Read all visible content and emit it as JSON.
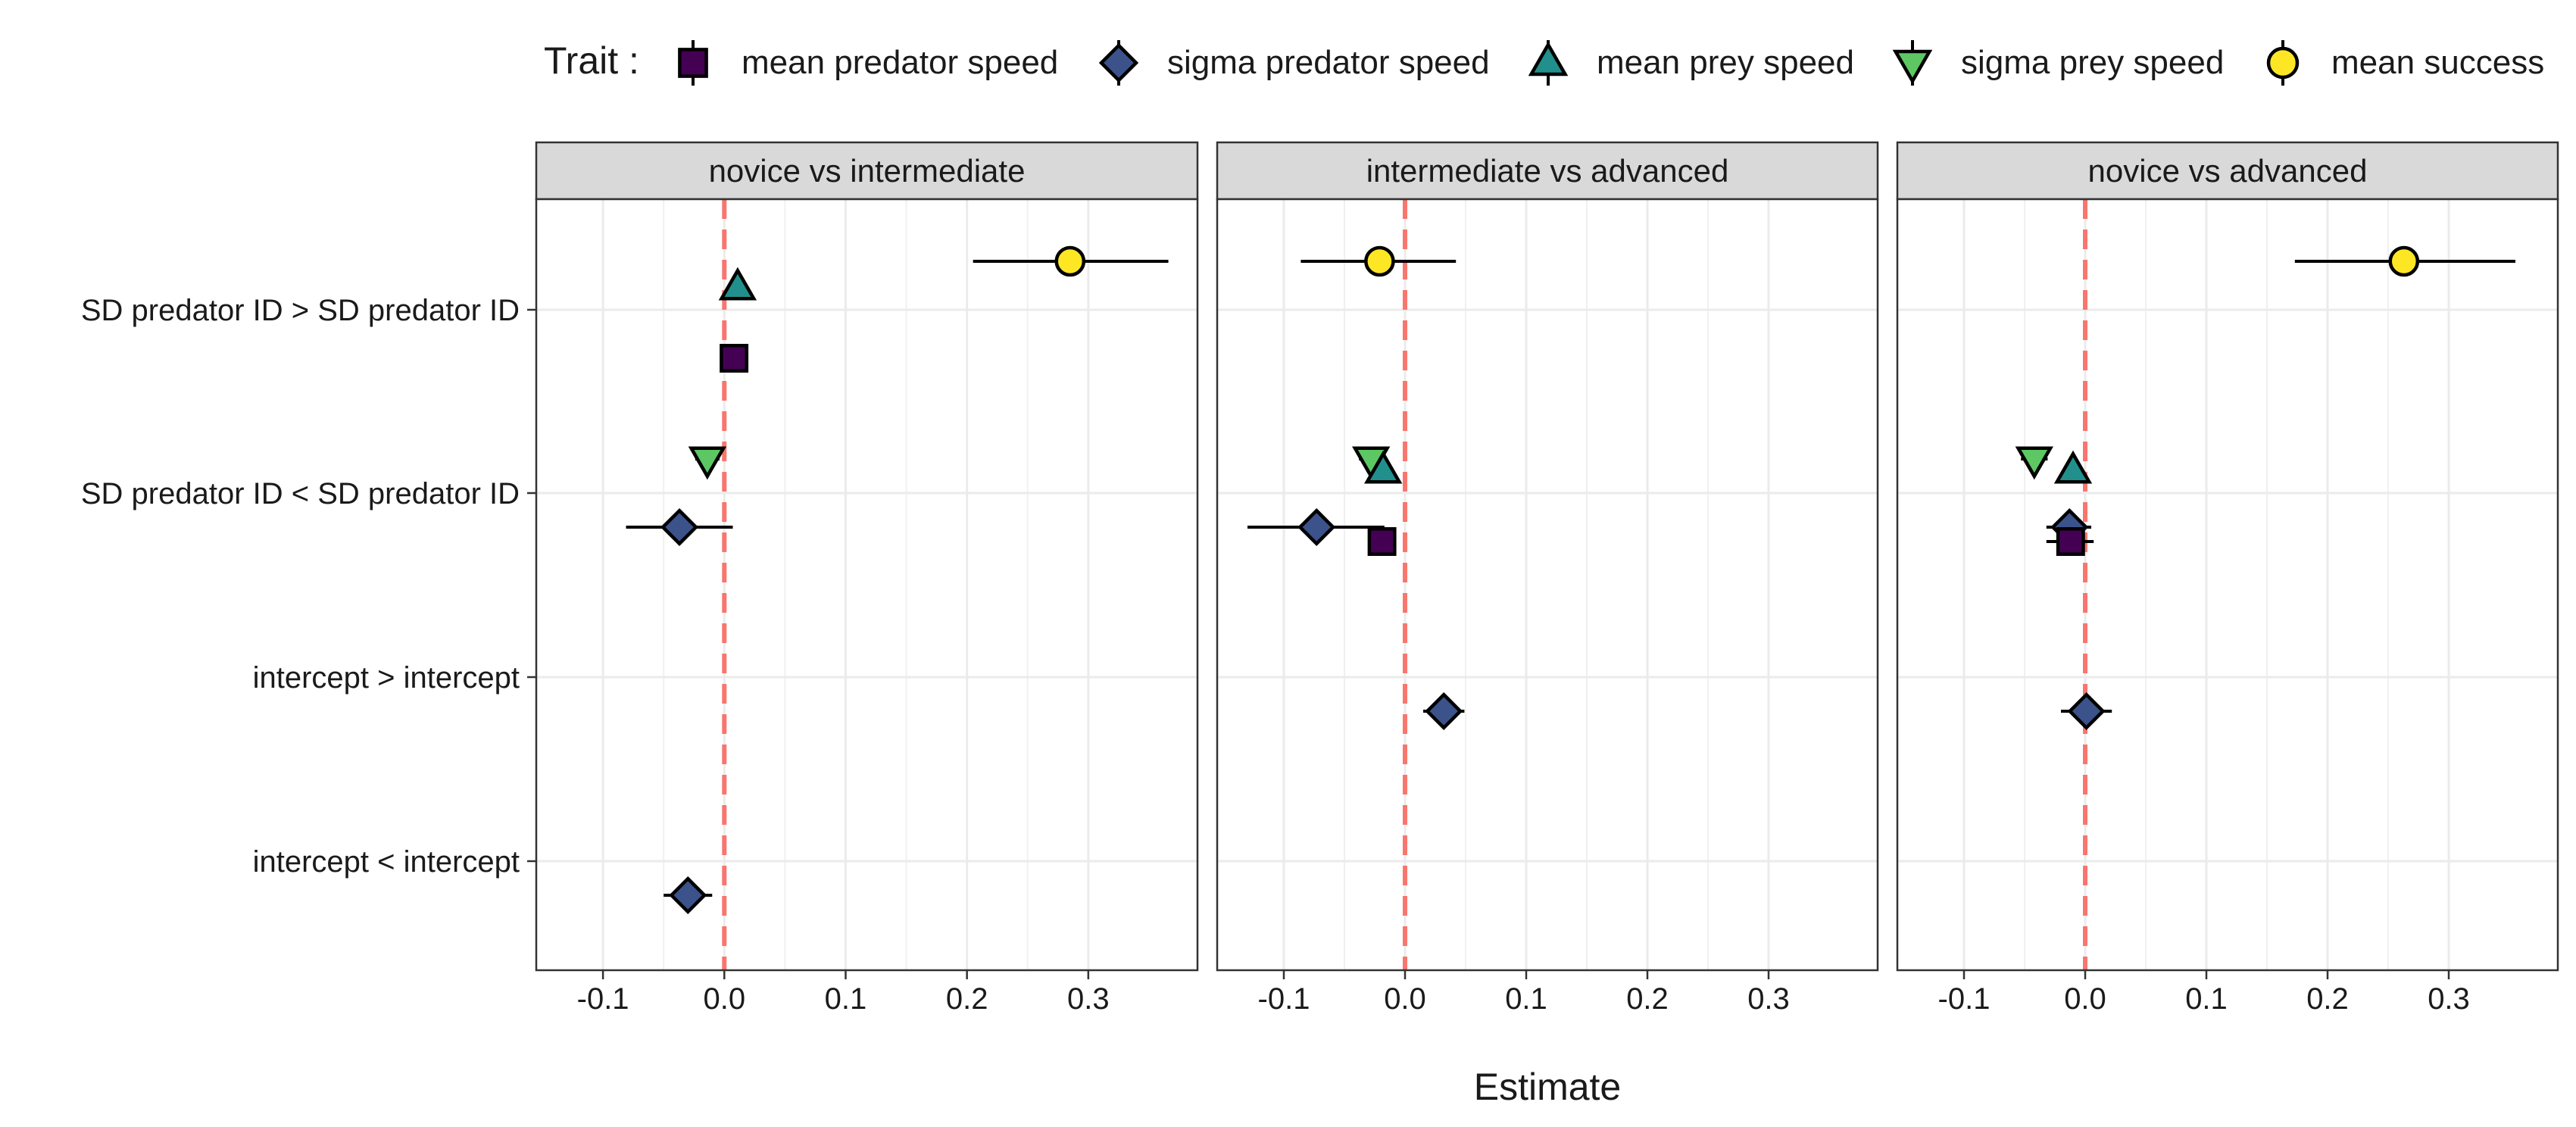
{
  "legend": {
    "title": "Trait :",
    "position": "top",
    "entries": [
      {
        "label": "mean predator speed",
        "shape": "square",
        "color": "#440154"
      },
      {
        "label": "sigma predator speed",
        "shape": "diamond",
        "color": "#3B528B"
      },
      {
        "label": "mean prey speed",
        "shape": "triangle-up",
        "color": "#21908C"
      },
      {
        "label": "sigma prey speed",
        "shape": "triangle-down",
        "color": "#5DC863"
      },
      {
        "label": "mean success",
        "shape": "circle",
        "color": "#FDE725"
      }
    ]
  },
  "x_axis_title": "Estimate",
  "reference_line_color": "#F8766D",
  "chart_data": {
    "type": "scatter",
    "subtype": "forest plot (point estimates with error bars)",
    "xlabel": "Estimate",
    "ylabel": "",
    "xlim": [
      -0.155,
      0.39
    ],
    "x_ticks": [
      -0.1,
      0.0,
      0.1,
      0.2,
      0.3
    ],
    "x_tick_labels": [
      "-0.1",
      "0.0",
      "0.1",
      "0.2",
      "0.3"
    ],
    "y_categories": [
      "SD predator ID > SD predator ID",
      "SD predator ID < SD predator ID",
      "intercept > intercept",
      "intercept < intercept"
    ],
    "reference_line": 0,
    "grid": true,
    "legend_position": "top",
    "panels": [
      {
        "title": "novice vs intermediate",
        "points": [
          {
            "category": "SD predator ID > SD predator ID",
            "trait": "mean success",
            "estimate": 0.285,
            "lower": 0.205,
            "upper": 0.366
          },
          {
            "category": "SD predator ID > SD predator ID",
            "trait": "mean prey speed",
            "estimate": 0.011,
            "lower": 0.002,
            "upper": 0.02
          },
          {
            "category": "SD predator ID > SD predator ID",
            "trait": "mean predator speed",
            "estimate": 0.008,
            "lower": -0.003,
            "upper": 0.018
          },
          {
            "category": "SD predator ID < SD predator ID",
            "trait": "sigma prey speed",
            "estimate": -0.014,
            "lower": -0.024,
            "upper": -0.004
          },
          {
            "category": "SD predator ID < SD predator ID",
            "trait": "sigma predator speed",
            "estimate": -0.037,
            "lower": -0.081,
            "upper": 0.007
          },
          {
            "category": "intercept < intercept",
            "trait": "sigma predator speed",
            "estimate": -0.03,
            "lower": -0.05,
            "upper": -0.01
          }
        ]
      },
      {
        "title": "intermediate vs advanced",
        "points": [
          {
            "category": "SD predator ID > SD predator ID",
            "trait": "mean success",
            "estimate": -0.021,
            "lower": -0.086,
            "upper": 0.042
          },
          {
            "category": "SD predator ID < SD predator ID",
            "trait": "sigma prey speed",
            "estimate": -0.028,
            "lower": -0.038,
            "upper": -0.018
          },
          {
            "category": "SD predator ID < SD predator ID",
            "trait": "mean prey speed",
            "estimate": -0.018,
            "lower": -0.027,
            "upper": -0.009
          },
          {
            "category": "SD predator ID < SD predator ID",
            "trait": "sigma predator speed",
            "estimate": -0.073,
            "lower": -0.13,
            "upper": -0.017
          },
          {
            "category": "SD predator ID < SD predator ID",
            "trait": "mean predator speed",
            "estimate": -0.019,
            "lower": -0.03,
            "upper": -0.008
          },
          {
            "category": "intercept > intercept",
            "trait": "sigma predator speed",
            "estimate": 0.032,
            "lower": 0.015,
            "upper": 0.049
          }
        ]
      },
      {
        "title": "novice vs advanced",
        "points": [
          {
            "category": "SD predator ID > SD predator ID",
            "trait": "mean success",
            "estimate": 0.263,
            "lower": 0.173,
            "upper": 0.355
          },
          {
            "category": "SD predator ID < SD predator ID",
            "trait": "sigma prey speed",
            "estimate": -0.042,
            "lower": -0.053,
            "upper": -0.031
          },
          {
            "category": "SD predator ID < SD predator ID",
            "trait": "mean prey speed",
            "estimate": -0.01,
            "lower": -0.019,
            "upper": -0.001
          },
          {
            "category": "SD predator ID < SD predator ID",
            "trait": "sigma predator speed",
            "estimate": -0.013,
            "lower": -0.032,
            "upper": 0.005
          },
          {
            "category": "SD predator ID < SD predator ID",
            "trait": "mean predator speed",
            "estimate": -0.012,
            "lower": -0.032,
            "upper": 0.007
          },
          {
            "category": "intercept > intercept",
            "trait": "sigma predator speed",
            "estimate": 0.001,
            "lower": -0.02,
            "upper": 0.022
          }
        ]
      }
    ]
  }
}
